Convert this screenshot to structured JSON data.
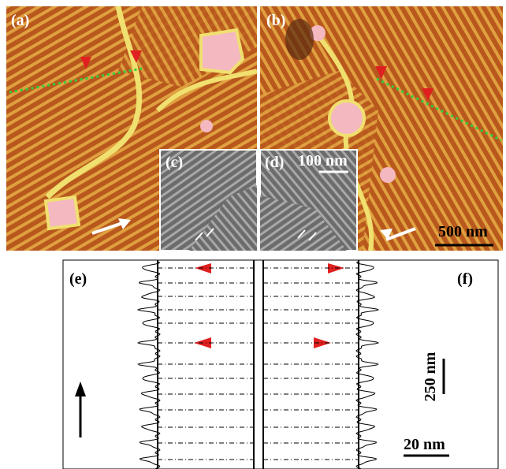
{
  "panels": {
    "a": "(a)",
    "b": "(b)",
    "c": "(c)",
    "d": "(d)",
    "e": "(e)",
    "f": "(f)"
  },
  "scale_bars": {
    "inset": "100 nm",
    "afm": "500 nm",
    "height": "250 nm",
    "width": "20 nm"
  }
}
